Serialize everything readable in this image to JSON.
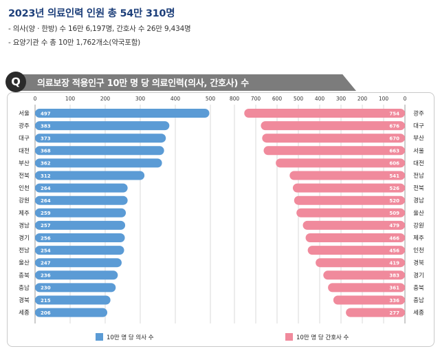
{
  "header": {
    "headline": "2023년 의료인력 인원 총 54만 310명",
    "bullet1": "- 의사(양 · 한방) 수 16만 6,197명, 간호사 수 26만 9,434명",
    "bullet2": "- 요양기관 수 총 10만 1,762개소(약국포함)"
  },
  "question": {
    "badge": "Q",
    "title": "의료보장 적용인구 10만 명 당 의료인력(의사, 간호사) 수"
  },
  "colors": {
    "doctor": "#5b9bd5",
    "nurse": "#f08a9c",
    "banner": "#7c7c7c"
  },
  "chart_data": [
    {
      "type": "bar",
      "orientation": "horizontal",
      "categories": [
        "서울",
        "광주",
        "대구",
        "대전",
        "부산",
        "전북",
        "인천",
        "강원",
        "제주",
        "경남",
        "경기",
        "전남",
        "울산",
        "충북",
        "충남",
        "경북",
        "세종"
      ],
      "values": [
        497,
        383,
        373,
        368,
        362,
        312,
        264,
        264,
        259,
        257,
        256,
        254,
        247,
        236,
        230,
        215,
        206
      ],
      "xlim": [
        0,
        500
      ],
      "xticks": [
        0,
        100,
        200,
        300,
        400,
        500
      ],
      "legend": "10만 명 당 의사 수",
      "color": "#5b9bd5"
    },
    {
      "type": "bar",
      "orientation": "horizontal-reversed",
      "categories": [
        "광주",
        "대구",
        "부산",
        "서울",
        "대전",
        "전남",
        "전북",
        "경남",
        "울산",
        "강원",
        "제주",
        "인천",
        "경북",
        "경기",
        "충북",
        "충남",
        "세종"
      ],
      "values": [
        754,
        676,
        670,
        663,
        606,
        541,
        526,
        520,
        509,
        479,
        466,
        456,
        419,
        383,
        361,
        336,
        277
      ],
      "xlim": [
        0,
        800
      ],
      "xticks": [
        800,
        700,
        600,
        500,
        400,
        300,
        200,
        100,
        0
      ],
      "legend": "10만 명 당 간호사 수",
      "color": "#f08a9c"
    }
  ]
}
